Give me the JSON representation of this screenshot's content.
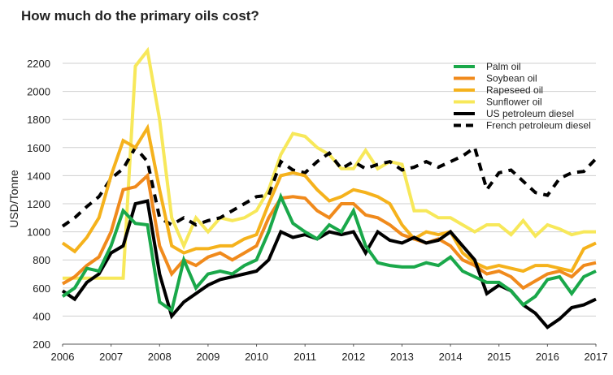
{
  "chart_data": {
    "type": "line",
    "title": "How much do the primary oils cost?",
    "xlabel": "",
    "ylabel": "USD/Tonne",
    "xlim": [
      2006,
      2017
    ],
    "ylim": [
      200,
      2200
    ],
    "x_ticks": [
      "2006",
      "2007",
      "2008",
      "2009",
      "2010",
      "2011",
      "2012",
      "2013",
      "2014",
      "2015",
      "2016",
      "2017"
    ],
    "y_ticks": [
      "200",
      "400",
      "600",
      "800",
      "1000",
      "1200",
      "1400",
      "1600",
      "1800",
      "2000",
      "2200"
    ],
    "grid": true,
    "legend_position": "top-right",
    "series": [
      {
        "name": "Palm oil",
        "color": "#1aa84a",
        "style": "solid",
        "x": [
          2006,
          2006.25,
          2006.5,
          2006.75,
          2007,
          2007.25,
          2007.5,
          2007.75,
          2008,
          2008.25,
          2008.5,
          2008.75,
          2009,
          2009.25,
          2009.5,
          2009.75,
          2010,
          2010.25,
          2010.5,
          2010.75,
          2011,
          2011.25,
          2011.5,
          2011.75,
          2012,
          2012.25,
          2012.5,
          2012.75,
          2013,
          2013.25,
          2013.5,
          2013.75,
          2014,
          2014.25,
          2014.5,
          2014.75,
          2015,
          2015.25,
          2015.5,
          2015.75,
          2016,
          2016.25,
          2016.5,
          2016.75,
          2017
        ],
        "y": [
          540,
          600,
          740,
          720,
          900,
          1150,
          1060,
          1050,
          500,
          440,
          800,
          600,
          700,
          720,
          700,
          760,
          800,
          1000,
          1250,
          1060,
          1000,
          950,
          1050,
          1000,
          1150,
          900,
          780,
          760,
          750,
          750,
          780,
          760,
          820,
          720,
          680,
          640,
          640,
          580,
          480,
          540,
          660,
          680,
          560,
          680,
          720
        ]
      },
      {
        "name": "Soybean oil",
        "color": "#f08a1c",
        "style": "solid",
        "x": [
          2006,
          2006.25,
          2006.5,
          2006.75,
          2007,
          2007.25,
          2007.5,
          2007.75,
          2008,
          2008.25,
          2008.5,
          2008.75,
          2009,
          2009.25,
          2009.5,
          2009.75,
          2010,
          2010.25,
          2010.5,
          2010.75,
          2011,
          2011.25,
          2011.5,
          2011.75,
          2012,
          2012.25,
          2012.5,
          2012.75,
          2013,
          2013.25,
          2013.5,
          2013.75,
          2014,
          2014.25,
          2014.5,
          2014.75,
          2015,
          2015.25,
          2015.5,
          2015.75,
          2016,
          2016.25,
          2016.5,
          2016.75,
          2017
        ],
        "y": [
          630,
          680,
          760,
          820,
          1000,
          1300,
          1320,
          1400,
          900,
          700,
          800,
          760,
          820,
          850,
          800,
          850,
          900,
          1100,
          1240,
          1250,
          1240,
          1150,
          1100,
          1200,
          1200,
          1120,
          1100,
          1050,
          980,
          950,
          920,
          950,
          900,
          800,
          760,
          700,
          720,
          680,
          600,
          650,
          700,
          720,
          680,
          760,
          780
        ]
      },
      {
        "name": "Rapeseed oil",
        "color": "#f5b21c",
        "style": "solid",
        "x": [
          2006,
          2006.25,
          2006.5,
          2006.75,
          2007,
          2007.25,
          2007.5,
          2007.75,
          2008,
          2008.25,
          2008.5,
          2008.75,
          2009,
          2009.25,
          2009.5,
          2009.75,
          2010,
          2010.25,
          2010.5,
          2010.75,
          2011,
          2011.25,
          2011.5,
          2011.75,
          2012,
          2012.25,
          2012.5,
          2012.75,
          2013,
          2013.25,
          2013.5,
          2013.75,
          2014,
          2014.25,
          2014.5,
          2014.75,
          2015,
          2015.25,
          2015.5,
          2015.75,
          2016,
          2016.25,
          2016.5,
          2016.75,
          2017
        ],
        "y": [
          920,
          860,
          960,
          1100,
          1400,
          1650,
          1600,
          1740,
          1300,
          900,
          850,
          880,
          880,
          900,
          900,
          950,
          980,
          1200,
          1400,
          1420,
          1400,
          1300,
          1220,
          1250,
          1300,
          1280,
          1250,
          1200,
          1050,
          950,
          1000,
          980,
          1000,
          850,
          780,
          740,
          760,
          740,
          720,
          760,
          760,
          740,
          720,
          880,
          920
        ]
      },
      {
        "name": "Sunflower oil",
        "color": "#f7e85a",
        "style": "solid",
        "x": [
          2006,
          2006.25,
          2006.5,
          2006.75,
          2007,
          2007.25,
          2007.5,
          2007.75,
          2008,
          2008.25,
          2008.5,
          2008.75,
          2009,
          2009.25,
          2009.5,
          2009.75,
          2010,
          2010.25,
          2010.5,
          2010.75,
          2011,
          2011.25,
          2011.5,
          2011.75,
          2012,
          2012.25,
          2012.5,
          2012.75,
          2013,
          2013.25,
          2013.5,
          2013.75,
          2014,
          2014.25,
          2014.5,
          2014.75,
          2015,
          2015.25,
          2015.5,
          2015.75,
          2016,
          2016.25,
          2016.5,
          2016.75,
          2017
        ],
        "y": [
          670,
          670,
          670,
          670,
          670,
          670,
          2180,
          2290,
          1800,
          1100,
          900,
          1100,
          1000,
          1100,
          1080,
          1100,
          1150,
          1300,
          1550,
          1700,
          1680,
          1600,
          1550,
          1450,
          1450,
          1580,
          1450,
          1500,
          1480,
          1150,
          1150,
          1100,
          1100,
          1050,
          1000,
          1050,
          1050,
          980,
          1080,
          970,
          1050,
          1020,
          980,
          1000,
          1000
        ]
      },
      {
        "name": "US petroleum diesel",
        "color": "#000000",
        "style": "solid",
        "x": [
          2006,
          2006.25,
          2006.5,
          2006.75,
          2007,
          2007.25,
          2007.5,
          2007.75,
          2008,
          2008.25,
          2008.5,
          2008.75,
          2009,
          2009.25,
          2009.5,
          2009.75,
          2010,
          2010.25,
          2010.5,
          2010.75,
          2011,
          2011.25,
          2011.5,
          2011.75,
          2012,
          2012.25,
          2012.5,
          2012.75,
          2013,
          2013.25,
          2013.5,
          2013.75,
          2014,
          2014.25,
          2014.5,
          2014.75,
          2015,
          2015.25,
          2015.5,
          2015.75,
          2016,
          2016.25,
          2016.5,
          2016.75,
          2017
        ],
        "y": [
          580,
          520,
          640,
          700,
          850,
          900,
          1200,
          1220,
          700,
          400,
          500,
          560,
          620,
          660,
          680,
          700,
          720,
          800,
          1000,
          960,
          980,
          950,
          1000,
          980,
          1000,
          850,
          1000,
          940,
          920,
          960,
          920,
          940,
          1000,
          900,
          800,
          560,
          620,
          580,
          480,
          420,
          320,
          380,
          460,
          480,
          520
        ]
      },
      {
        "name": "French petroleum diesel",
        "color": "#000000",
        "style": "dashed",
        "x": [
          2006,
          2006.25,
          2006.5,
          2006.75,
          2007,
          2007.25,
          2007.5,
          2007.75,
          2008,
          2008.25,
          2008.5,
          2008.75,
          2009,
          2009.25,
          2009.5,
          2009.75,
          2010,
          2010.25,
          2010.5,
          2010.75,
          2011,
          2011.25,
          2011.5,
          2011.75,
          2012,
          2012.25,
          2012.5,
          2012.75,
          2013,
          2013.25,
          2013.5,
          2013.75,
          2014,
          2014.25,
          2014.5,
          2014.75,
          2015,
          2015.25,
          2015.5,
          2015.75,
          2016,
          2016.25,
          2016.5,
          2016.75,
          2017
        ],
        "y": [
          1040,
          1100,
          1180,
          1250,
          1380,
          1450,
          1600,
          1500,
          1100,
          1050,
          1100,
          1050,
          1080,
          1100,
          1150,
          1200,
          1250,
          1260,
          1500,
          1440,
          1420,
          1500,
          1560,
          1450,
          1500,
          1450,
          1480,
          1500,
          1440,
          1460,
          1500,
          1460,
          1500,
          1540,
          1600,
          1300,
          1420,
          1440,
          1360,
          1280,
          1260,
          1380,
          1420,
          1430,
          1520
        ]
      }
    ]
  }
}
